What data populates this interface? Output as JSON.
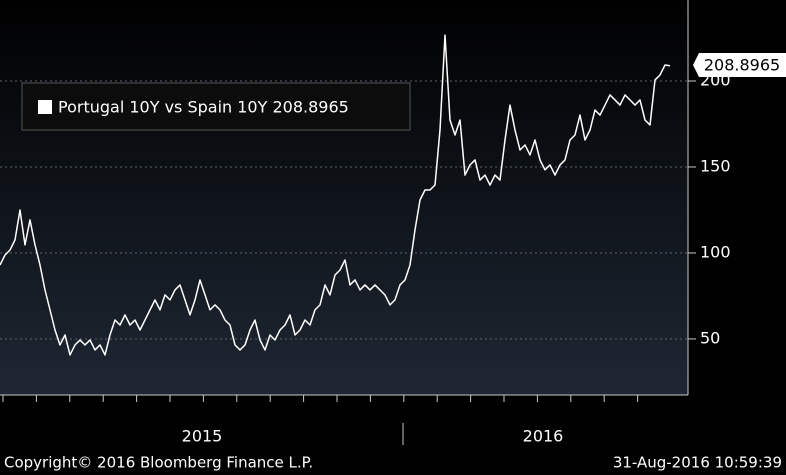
{
  "chart_data": {
    "type": "line",
    "series": [
      {
        "name": "Portugal 10Y vs Spain 10Y 208.8965",
        "color": "#ffffff",
        "values": [
          93.0,
          98.8,
          101.7,
          107.6,
          125.0,
          104.7,
          119.2,
          104.7,
          93.0,
          78.5,
          66.9,
          55.2,
          46.5,
          52.3,
          40.7,
          46.5,
          49.4,
          46.5,
          49.4,
          43.6,
          46.5,
          40.7,
          52.3,
          61.0,
          58.1,
          64.0,
          58.1,
          61.0,
          55.2,
          61.0,
          66.9,
          72.7,
          66.9,
          75.6,
          72.7,
          78.5,
          81.4,
          72.7,
          64.0,
          72.7,
          84.3,
          75.6,
          66.9,
          69.8,
          66.9,
          61.0,
          58.1,
          46.5,
          43.6,
          46.5,
          55.2,
          61.0,
          49.4,
          43.6,
          52.3,
          49.4,
          55.2,
          58.1,
          64.0,
          52.3,
          55.2,
          61.0,
          58.1,
          66.9,
          69.8,
          81.4,
          75.6,
          87.2,
          90.1,
          95.9,
          81.4,
          84.3,
          78.5,
          81.4,
          78.5,
          81.4,
          78.5,
          75.6,
          69.8,
          72.7,
          81.4,
          84.3,
          93.0,
          113.4,
          130.8,
          136.6,
          136.6,
          139.5,
          171.5,
          226.7,
          177.3,
          168.6,
          177.3,
          145.3,
          151.2,
          154.1,
          142.4,
          145.3,
          139.5,
          145.3,
          142.4,
          165.7,
          186.0,
          171.5,
          159.9,
          162.8,
          157.0,
          165.7,
          154.1,
          148.3,
          151.2,
          145.3,
          151.2,
          154.1,
          165.7,
          168.6,
          180.2,
          165.7,
          171.5,
          183.1,
          180.2,
          186.0,
          191.9,
          189.0,
          186.0,
          191.9,
          189.0,
          186.0,
          189.0,
          177.3,
          174.4,
          200.6,
          203.5,
          209.3,
          208.8965
        ]
      }
    ],
    "xlabels": [
      "2015",
      "2016"
    ],
    "ylim": [
      17.4,
      247.1
    ],
    "yticks": [
      50,
      100,
      150,
      200
    ],
    "grid": true,
    "source": "Copyright© 2016 Bloomberg Finance L.P.",
    "timestamp": "31-Aug-2016 10:59:39"
  }
}
